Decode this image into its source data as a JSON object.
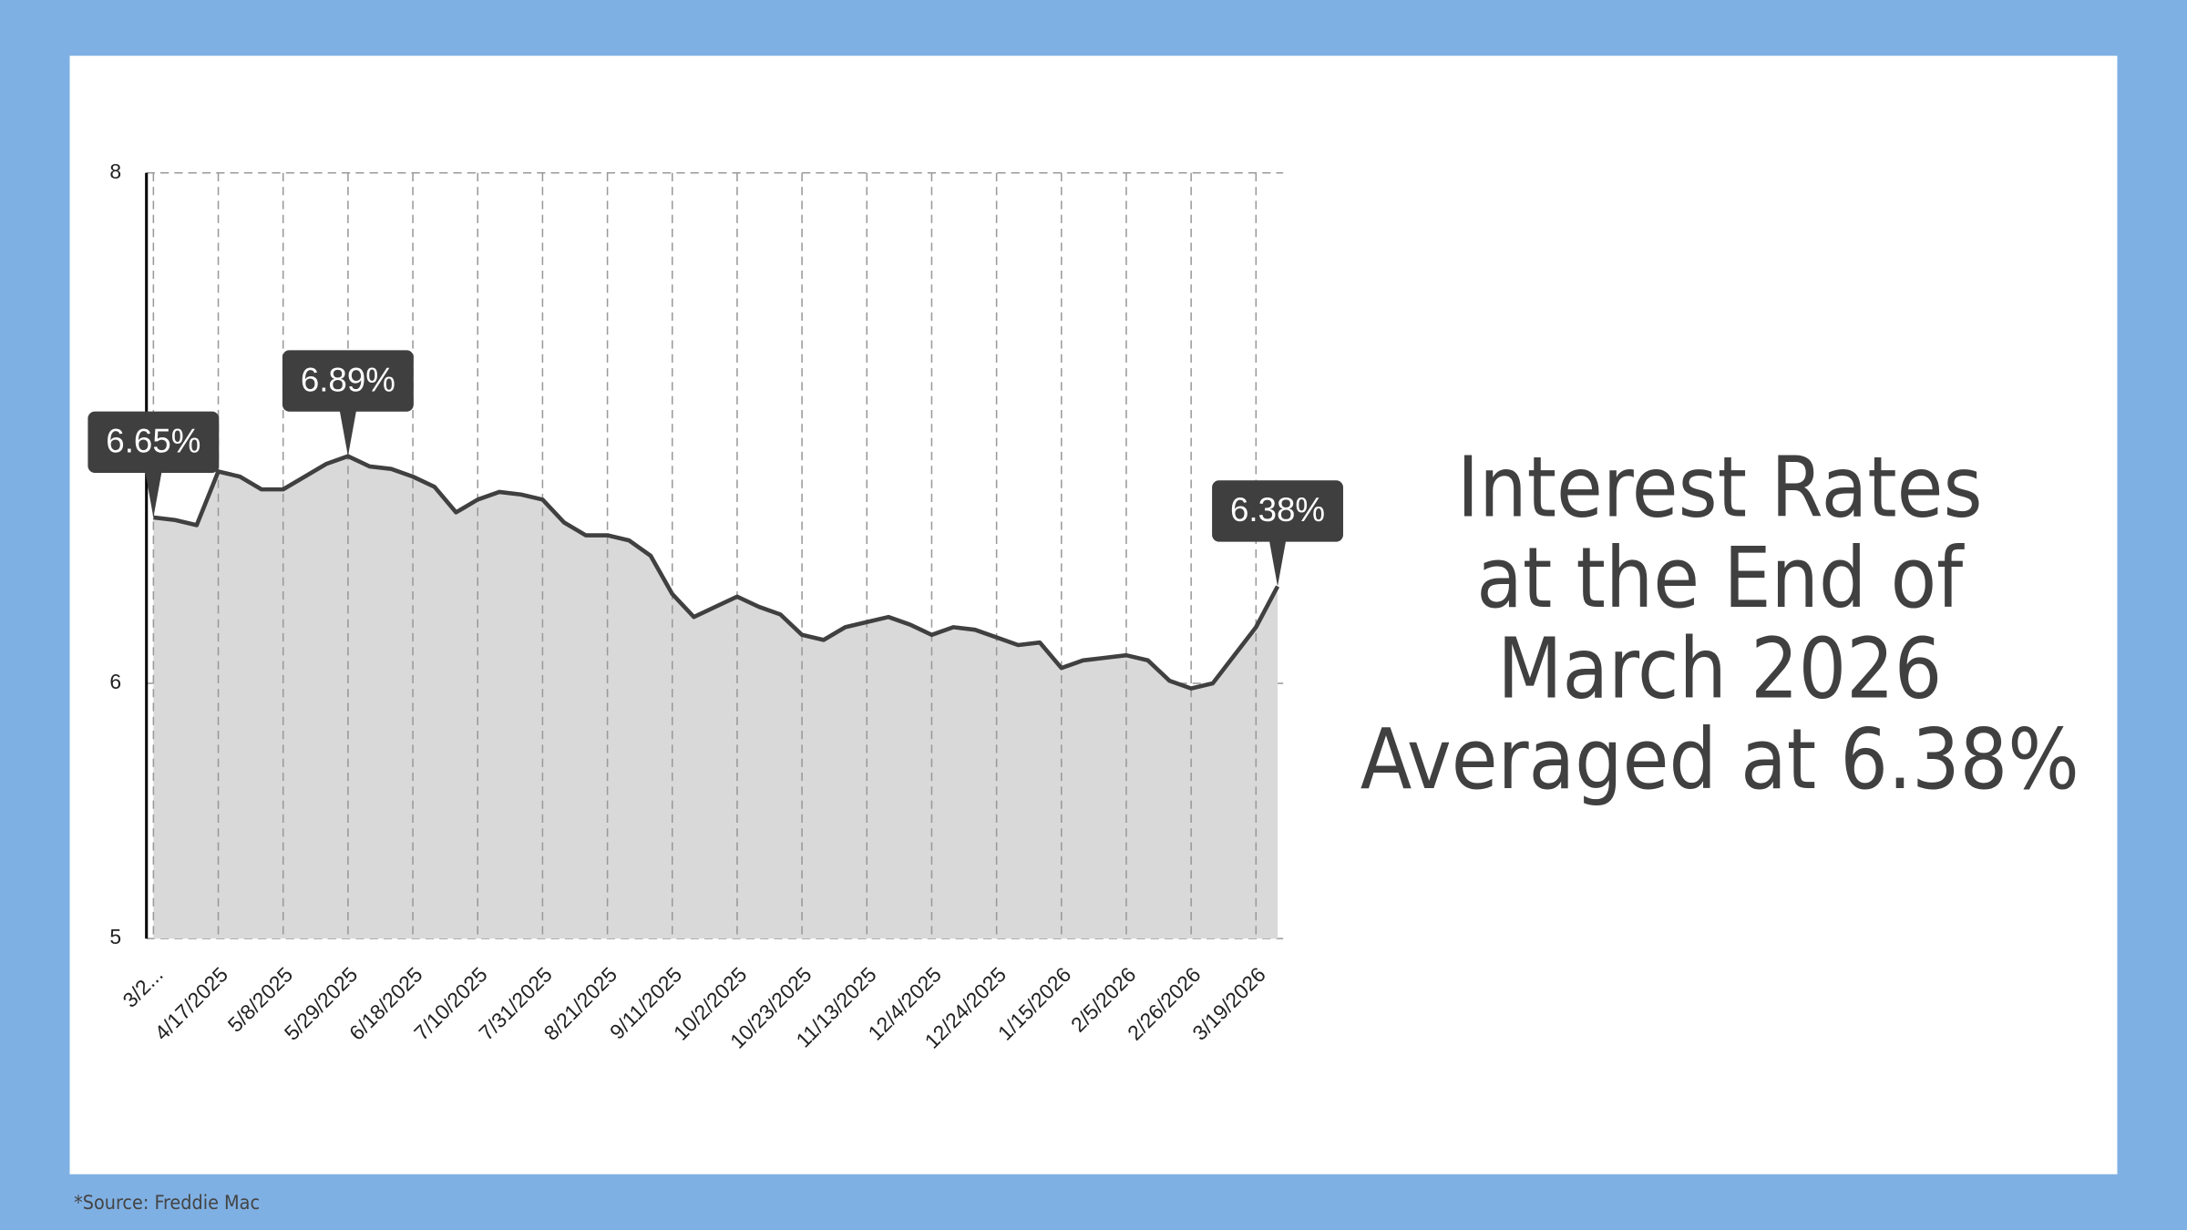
{
  "chart_data": {
    "type": "area",
    "title": [
      "Interest Rates",
      "at the End of",
      "March 2026",
      "Averaged at 6.38%"
    ],
    "source": "*Source: Freddie Mac",
    "categories": [
      "3/2...",
      null,
      null,
      "4/17/2025",
      null,
      null,
      "5/8/2025",
      null,
      null,
      "5/29/2025",
      null,
      null,
      "6/18/2025",
      null,
      null,
      "7/10/2025",
      null,
      null,
      "7/31/2025",
      null,
      null,
      "8/21/2025",
      null,
      null,
      "9/11/2025",
      null,
      null,
      "10/2/2025",
      null,
      null,
      "10/23/2025",
      null,
      null,
      "11/13/2025",
      null,
      null,
      "12/4/2025",
      null,
      null,
      "12/24/2025",
      null,
      null,
      "1/15/2026",
      null,
      null,
      "2/5/2026",
      null,
      null,
      "2/26/2026",
      null,
      null,
      "3/19/2026",
      null
    ],
    "values": [
      6.65,
      6.64,
      6.62,
      6.83,
      6.81,
      6.76,
      6.76,
      6.81,
      6.86,
      6.89,
      6.85,
      6.84,
      6.81,
      6.77,
      6.67,
      6.72,
      6.75,
      6.74,
      6.72,
      6.63,
      6.58,
      6.58,
      6.56,
      6.5,
      6.35,
      6.26,
      6.3,
      6.34,
      6.3,
      6.27,
      6.19,
      6.17,
      6.22,
      6.24,
      6.26,
      6.23,
      6.19,
      6.22,
      6.21,
      6.18,
      6.15,
      6.16,
      6.06,
      6.09,
      6.1,
      6.11,
      6.09,
      6.01,
      5.98,
      6.0,
      6.11,
      6.22,
      6.38
    ],
    "value_labels": [
      "6.65%",
      null,
      null,
      null,
      null,
      null,
      null,
      null,
      null,
      "6.89%",
      null,
      null,
      null,
      null,
      null,
      null,
      null,
      null,
      null,
      null,
      null,
      null,
      null,
      null,
      null,
      null,
      null,
      null,
      null,
      null,
      null,
      null,
      null,
      null,
      null,
      null,
      null,
      null,
      null,
      null,
      null,
      null,
      null,
      null,
      null,
      null,
      null,
      null,
      null,
      null,
      null,
      null,
      "6.38%"
    ],
    "color": "#404040",
    "fill": "#d9d9d9",
    "ylim": [
      5,
      8
    ],
    "yticks": [
      5,
      6,
      8
    ],
    "grid": true
  }
}
